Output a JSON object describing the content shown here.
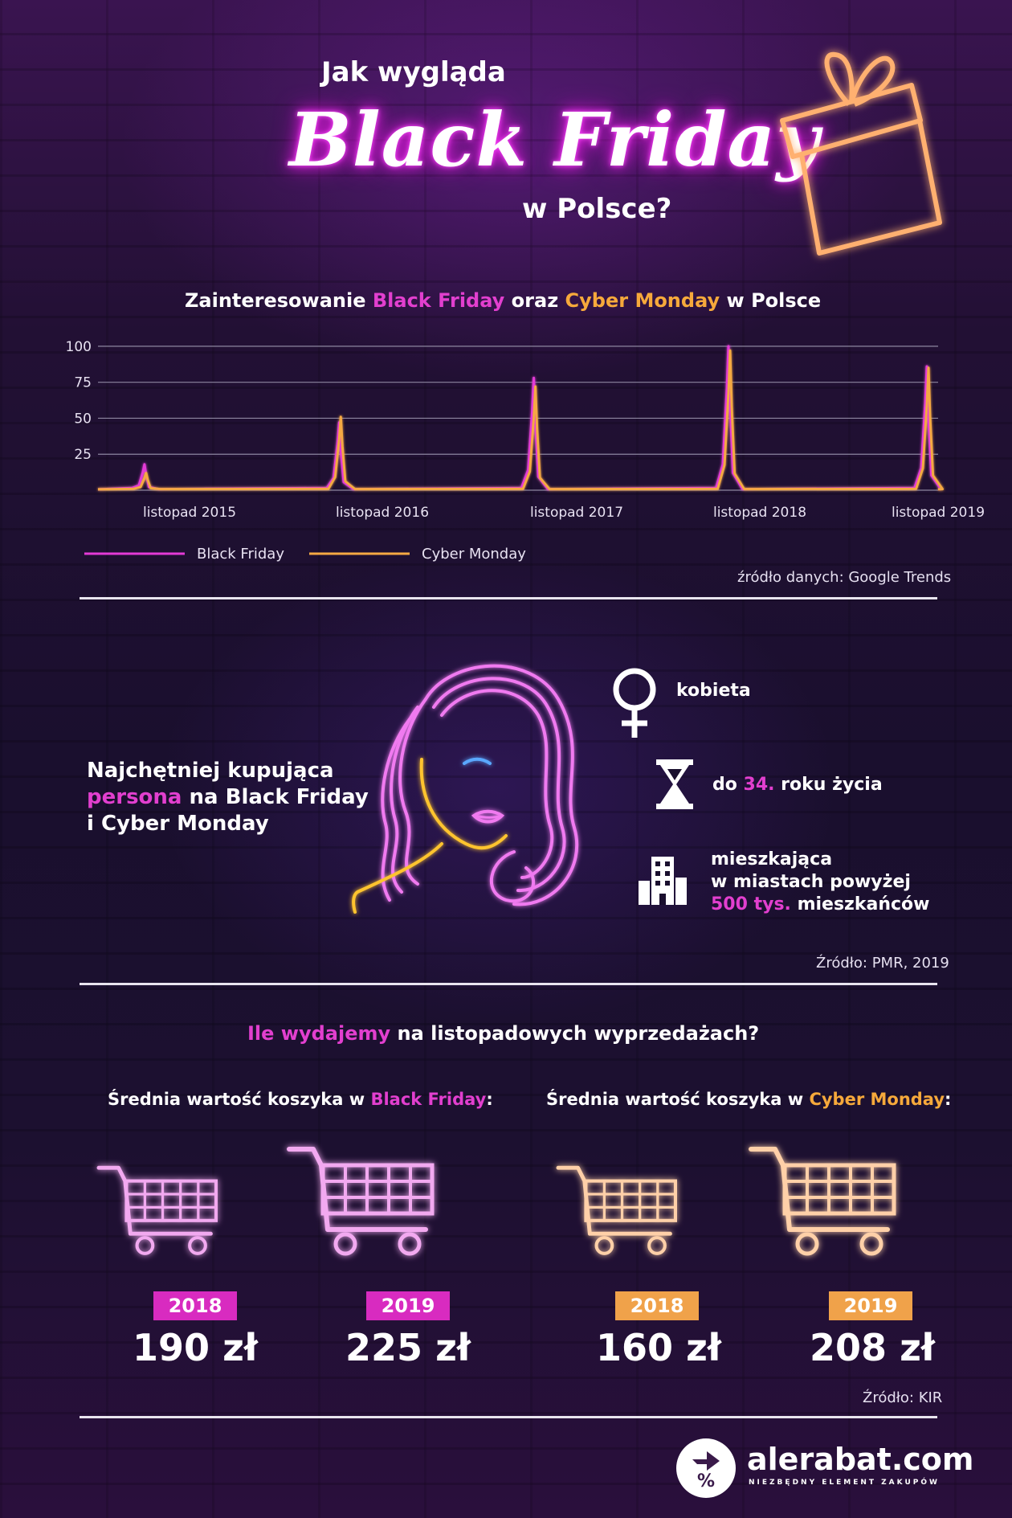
{
  "header": {
    "line1": "Jak wygląda",
    "line2": "Black Friday",
    "line3": "w Polsce?"
  },
  "chart_section": {
    "title_pre": "Zainteresowanie ",
    "title_bf": "Black Friday",
    "title_mid": " oraz ",
    "title_cm": "Cyber Monday",
    "title_post": " w Polsce",
    "source": "źródło danych: Google Trends"
  },
  "chart_data": {
    "type": "line",
    "y_ticks": [
      25,
      50,
      75,
      100
    ],
    "ylim": [
      0,
      100
    ],
    "x_tick_labels": [
      "listopad 2015",
      "listopad 2016",
      "listopad 2017",
      "listopad 2018",
      "listopad 2019"
    ],
    "x_range": [
      "2015-09",
      "2019-12"
    ],
    "series": [
      {
        "name": "Black Friday",
        "color": "#e33ad6",
        "peaks": [
          {
            "date": "2015-11-27",
            "value": 18
          },
          {
            "date": "2016-11-25",
            "value": 47
          },
          {
            "date": "2017-11-24",
            "value": 78
          },
          {
            "date": "2018-11-23",
            "value": 100
          },
          {
            "date": "2019-11-29",
            "value": 86
          }
        ]
      },
      {
        "name": "Cyber Monday",
        "color": "#f5a943",
        "peaks": [
          {
            "date": "2015-11-30",
            "value": 12
          },
          {
            "date": "2016-11-28",
            "value": 51
          },
          {
            "date": "2017-11-27",
            "value": 72
          },
          {
            "date": "2018-11-26",
            "value": 97
          },
          {
            "date": "2019-12-02",
            "value": 85
          }
        ]
      }
    ],
    "legend": [
      "Black Friday",
      "Cyber Monday"
    ],
    "legend_position": "bottom-left",
    "grid": true
  },
  "persona": {
    "heading_line1": "Najchętniej kupująca",
    "heading_highlight": "persona",
    "heading_line2_rest": " na Black Friday",
    "heading_line3": "i Cyber Monday",
    "gender": "kobieta",
    "age_pre": "do ",
    "age_value": "34.",
    "age_post": " roku życia",
    "city_line1": "mieszkająca",
    "city_line2": "w miastach powyżej",
    "city_highlight": "500 tys.",
    "city_post": " mieszkańców",
    "source": "Źródło: PMR, 2019"
  },
  "spending": {
    "title_highlight": "Ile wydajemy",
    "title_rest": " na listopadowych wyprzedażach?",
    "bf_label_pre": "Średnia wartość koszyka w ",
    "bf_label_hl": "Black Friday",
    "bf_label_post": ":",
    "cm_label_pre": "Średnia wartość koszyka w ",
    "cm_label_hl": "Cyber Monday",
    "cm_label_post": ":",
    "baskets": [
      {
        "year": "2018",
        "amount": "190 zł",
        "type": "Black Friday"
      },
      {
        "year": "2019",
        "amount": "225 zł",
        "type": "Black Friday"
      },
      {
        "year": "2018",
        "amount": "160 zł",
        "type": "Cyber Monday"
      },
      {
        "year": "2019",
        "amount": "208 zł",
        "type": "Cyber Monday"
      }
    ],
    "source": "Źródło: KIR"
  },
  "brand": {
    "name": "alerabat.com",
    "tagline": "NIEZBĘDNY ELEMENT ZAKUPÓW"
  },
  "colors": {
    "pink": "#e23fcf",
    "orange": "#f6a93b"
  }
}
